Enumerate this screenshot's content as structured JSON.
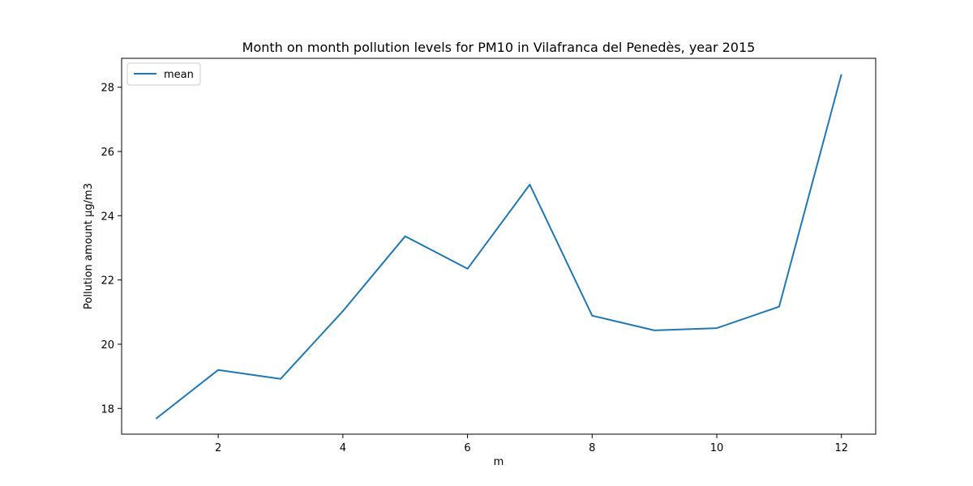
{
  "chart_data": {
    "type": "line",
    "title": "Month on month pollution levels for PM10 in Vilafranca del Penedès, year 2015",
    "xlabel": "m",
    "ylabel": "Pollution amount µg/m3",
    "x": [
      1,
      2,
      3,
      4,
      5,
      6,
      7,
      8,
      9,
      10,
      11,
      12
    ],
    "series": [
      {
        "name": "mean",
        "color": "#1f77b4",
        "values": [
          17.68,
          19.2,
          18.92,
          21.03,
          23.36,
          22.35,
          24.97,
          20.89,
          20.43,
          20.5,
          21.17,
          28.4
        ]
      }
    ],
    "xlim": [
      0.45,
      12.55
    ],
    "ylim": [
      17.2,
      28.9
    ],
    "xticks": [
      2,
      4,
      6,
      8,
      10,
      12
    ],
    "yticks": [
      18,
      20,
      22,
      24,
      26,
      28
    ],
    "grid": false,
    "legend_position": "top-left"
  }
}
